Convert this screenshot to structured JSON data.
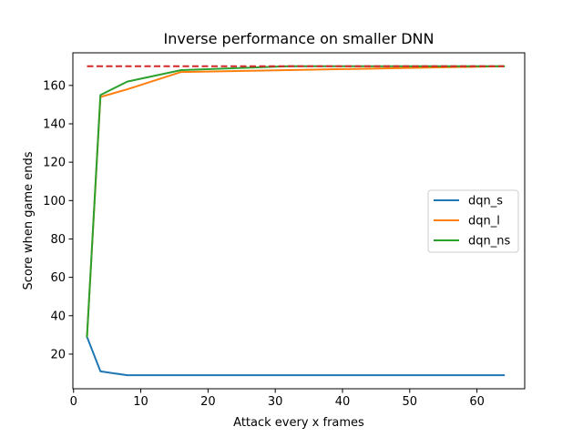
{
  "chart_data": {
    "type": "line",
    "title": "Inverse performance on smaller DNN",
    "xlabel": "Attack every x frames",
    "ylabel": "Score when game ends",
    "xlim": [
      -0.1,
      67.1
    ],
    "ylim": [
      1.95,
      177.0
    ],
    "xticks": [
      0,
      10,
      20,
      30,
      40,
      50,
      60
    ],
    "yticks": [
      20,
      40,
      60,
      80,
      100,
      120,
      140,
      160
    ],
    "grid": false,
    "legend_position": "center-right",
    "x": [
      2,
      4,
      8,
      16,
      32,
      64
    ],
    "series": [
      {
        "name": "dqn_s",
        "color": "#1f77b4",
        "values": [
          29,
          11,
          9,
          9,
          9,
          9
        ]
      },
      {
        "name": "dqn_l",
        "color": "#ff7f0e",
        "values": [
          29,
          154,
          158,
          167,
          168,
          170
        ]
      },
      {
        "name": "dqn_ns",
        "color": "#2ca02c",
        "values": [
          29,
          155,
          162,
          168,
          170,
          170
        ]
      }
    ],
    "reference_line": {
      "color": "#d62728",
      "style": "dashed",
      "y": 170,
      "x": [
        2,
        64
      ]
    }
  }
}
